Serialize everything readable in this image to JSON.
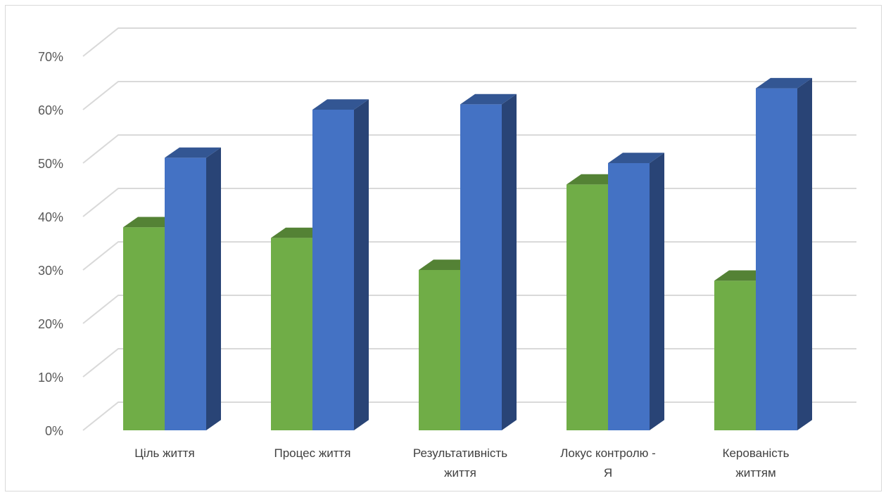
{
  "chart_data": {
    "type": "bar",
    "style": "3d-clustered-column",
    "title": "",
    "xlabel": "",
    "ylabel": "",
    "ylim": [
      0,
      70
    ],
    "y_ticks": [
      "0%",
      "10%",
      "20%",
      "30%",
      "40%",
      "50%",
      "60%",
      "70%"
    ],
    "grid": true,
    "legend": "none",
    "categories": [
      [
        "Ціль життя"
      ],
      [
        "Процес життя"
      ],
      [
        "Результативність",
        "життя"
      ],
      [
        "Локус контролю -",
        "Я"
      ],
      [
        "Керованість",
        "життям"
      ]
    ],
    "series": [
      {
        "color": "#70ad47",
        "values": [
          38,
          36,
          30,
          46,
          28
        ]
      },
      {
        "color": "#4472c4",
        "values": [
          51,
          60,
          61,
          50,
          64
        ]
      }
    ]
  }
}
